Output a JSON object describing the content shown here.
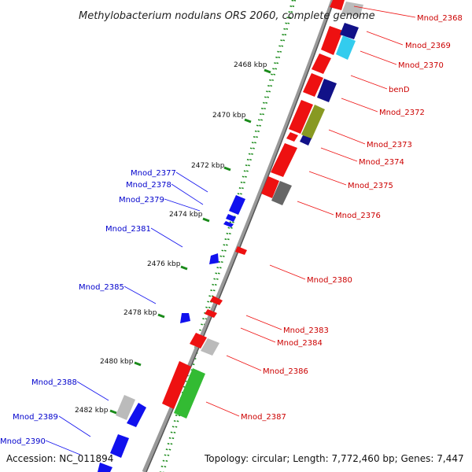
{
  "title": "Methylobacterium nodulans ORS 2060, complete genome",
  "accession": "Accession: NC_011894",
  "summary": "Topology: circular; Length: 7,772,460 bp; Genes: 7,447",
  "colors": {
    "red": "#ee1111",
    "blue": "#1111ee",
    "navy": "#111188",
    "green": "#33bb33",
    "olive": "#889922",
    "grey": "#bbbbbb",
    "darkgrey": "#666666",
    "cyan": "#33ccee",
    "backbone": "#999999",
    "tick": "#1a8a1a",
    "label_red": "#cc0000",
    "label_blue": "#0000cc"
  },
  "kbp_ticks": [
    "2468 kbp",
    "2470 kbp",
    "2472 kbp",
    "2474 kbp",
    "2476 kbp",
    "2478 kbp",
    "2480 kbp",
    "2482 kbp"
  ],
  "labels_right": [
    "Mnod_2368",
    "Mnod_2369",
    "Mnod_2370",
    "benD",
    "Mnod_2372",
    "Mnod_2373",
    "Mnod_2374",
    "Mnod_2375",
    "Mnod_2376",
    "Mnod_2380",
    "Mnod_2383",
    "Mnod_2384",
    "Mnod_2386",
    "Mnod_2387"
  ],
  "labels_left": [
    "Mnod_2377",
    "Mnod_2378",
    "Mnod_2379",
    "Mnod_2381",
    "Mnod_2385",
    "Mnod_2388",
    "Mnod_2389",
    "Mnod_2390"
  ]
}
